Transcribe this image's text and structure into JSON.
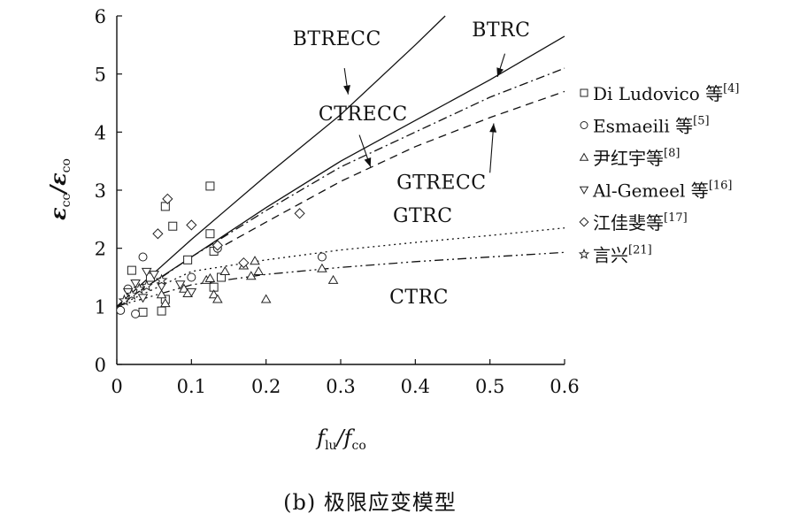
{
  "caption": "(b) 极限应变模型",
  "chart_data": {
    "type": "scatter",
    "xlabel": {
      "main": "f",
      "sub1": "lu",
      "sep": "/f",
      "sub2": "co"
    },
    "ylabel": {
      "main": "ε",
      "sub1": "cc",
      "sep": "/ε",
      "sub2": "co"
    },
    "xlim": [
      0,
      0.6
    ],
    "ylim": [
      0,
      6
    ],
    "x_ticks": [
      "0",
      "0.1",
      "0.2",
      "0.3",
      "0.4",
      "0.5",
      "0.6"
    ],
    "y_ticks": [
      "0",
      "1",
      "2",
      "3",
      "4",
      "5",
      "6"
    ],
    "curves": [
      {
        "name": "BTRECC",
        "style": "solid",
        "x": [
          0,
          0.1,
          0.2,
          0.3,
          0.4,
          0.44
        ],
        "y": [
          1,
          2.15,
          3.25,
          4.3,
          5.5,
          6
        ]
      },
      {
        "name": "BTRC",
        "style": "solid",
        "x": [
          0,
          0.1,
          0.2,
          0.3,
          0.4,
          0.5,
          0.6
        ],
        "y": [
          1,
          1.85,
          2.7,
          3.5,
          4.2,
          4.9,
          5.65
        ]
      },
      {
        "name": "CTRECC",
        "style": "dashdot",
        "x": [
          0.06,
          0.1,
          0.2,
          0.3,
          0.4,
          0.5,
          0.6
        ],
        "y": [
          1.5,
          1.85,
          2.65,
          3.4,
          4.0,
          4.6,
          5.1
        ]
      },
      {
        "name": "GTRECC",
        "style": "dashed",
        "x": [
          0.13,
          0.2,
          0.3,
          0.4,
          0.5,
          0.6
        ],
        "y": [
          1.95,
          2.45,
          3.15,
          3.75,
          4.25,
          4.7
        ]
      },
      {
        "name": "GTRC",
        "style": "dotted",
        "x": [
          0,
          0.1,
          0.2,
          0.3,
          0.4,
          0.5,
          0.6
        ],
        "y": [
          1,
          1.6,
          1.8,
          1.97,
          2.1,
          2.22,
          2.35
        ]
      },
      {
        "name": "CTRC",
        "style": "dashdotdot",
        "x": [
          0,
          0.1,
          0.2,
          0.3,
          0.4,
          0.5,
          0.6
        ],
        "y": [
          1,
          1.37,
          1.55,
          1.67,
          1.77,
          1.85,
          1.93
        ]
      }
    ],
    "annotations": [
      {
        "text": "BTRECC",
        "x": 0.295,
        "y": 5.5,
        "arrow": [
          0.305,
          5.1,
          0.31,
          4.65
        ]
      },
      {
        "text": "BTRC",
        "x": 0.515,
        "y": 5.65,
        "arrow": [
          0.52,
          5.35,
          0.51,
          4.95
        ]
      },
      {
        "text": "CTRECC",
        "x": 0.33,
        "y": 4.2,
        "arrow": [
          0.325,
          3.95,
          0.34,
          3.4
        ]
      },
      {
        "text": "GTRECC",
        "x": 0.435,
        "y": 3.02,
        "arrow": [
          0.5,
          3.3,
          0.505,
          4.15
        ]
      },
      {
        "text": "GTRC",
        "x": 0.41,
        "y": 2.45,
        "arrow": null
      },
      {
        "text": "CTRC",
        "x": 0.405,
        "y": 1.05,
        "arrow": null
      }
    ],
    "series": [
      {
        "name": "Di Ludovico 等",
        "ref": "[4]",
        "marker": "square",
        "x": [
          0.02,
          0.035,
          0.06,
          0.065,
          0.065,
          0.075,
          0.095,
          0.125,
          0.125,
          0.13,
          0.13,
          0.14,
          0.045
        ],
        "y": [
          1.62,
          0.9,
          0.92,
          1.12,
          2.72,
          2.38,
          1.8,
          2.25,
          3.07,
          1.95,
          1.33,
          1.5,
          1.5
        ]
      },
      {
        "name": "Esmaeili 等",
        "ref": "[5]",
        "marker": "circle",
        "x": [
          0.005,
          0.025,
          0.035,
          0.1,
          0.135,
          0.275,
          0.015
        ],
        "y": [
          0.93,
          0.87,
          1.85,
          1.5,
          2.0,
          1.85,
          1.3
        ]
      },
      {
        "name": "尹红宇等",
        "ref": "[8]",
        "marker": "triangle-up",
        "x": [
          0.06,
          0.065,
          0.09,
          0.095,
          0.12,
          0.125,
          0.13,
          0.135,
          0.145,
          0.17,
          0.18,
          0.185,
          0.19,
          0.2,
          0.275,
          0.29
        ],
        "y": [
          1.2,
          1.05,
          1.3,
          1.22,
          1.45,
          1.48,
          1.2,
          1.12,
          1.6,
          1.7,
          1.52,
          1.78,
          1.6,
          1.12,
          1.65,
          1.45
        ]
      },
      {
        "name": "Al-Gemeel 等",
        "ref": "[16]",
        "marker": "triangle-down",
        "x": [
          0.015,
          0.025,
          0.035,
          0.04,
          0.05,
          0.06,
          0.085,
          0.1
        ],
        "y": [
          1.25,
          1.4,
          1.15,
          1.6,
          1.55,
          1.35,
          1.38,
          1.25
        ]
      },
      {
        "name": "江佳斐等",
        "ref": "[17]",
        "marker": "diamond",
        "x": [
          0.055,
          0.068,
          0.1,
          0.135,
          0.17,
          0.245
        ],
        "y": [
          2.25,
          2.85,
          2.4,
          2.05,
          1.75,
          2.6
        ]
      },
      {
        "name": "言兴",
        "ref": "[21]",
        "marker": "star",
        "x": [
          0.01,
          0.02,
          0.03,
          0.04,
          0.06
        ],
        "y": [
          1.1,
          1.2,
          1.3,
          1.35,
          1.45
        ]
      }
    ]
  }
}
